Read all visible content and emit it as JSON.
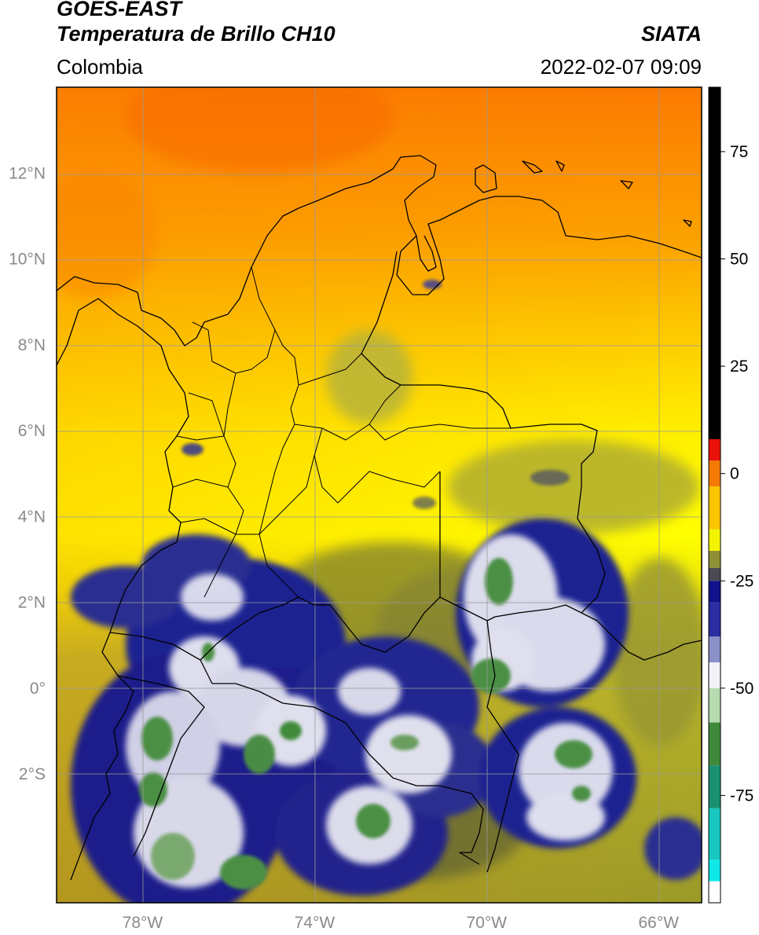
{
  "header": {
    "satellite": "GOES-EAST",
    "product": "Temperatura de Brillo CH10",
    "organization": "SIATA",
    "region": "Colombia",
    "datetime": "2022-02-07 09:09"
  },
  "map": {
    "lon_range": [
      -80,
      -65
    ],
    "lat_range": [
      -5,
      14
    ],
    "lat_ticks": [
      {
        "value": 12,
        "label": "12°N"
      },
      {
        "value": 10,
        "label": "10°N"
      },
      {
        "value": 8,
        "label": "8°N"
      },
      {
        "value": 6,
        "label": "6°N"
      },
      {
        "value": 4,
        "label": "4°N"
      },
      {
        "value": 2,
        "label": "2°N"
      },
      {
        "value": 0,
        "label": "0°"
      },
      {
        "value": -2,
        "label": "2°S"
      }
    ],
    "lon_ticks": [
      {
        "value": -78,
        "label": "78°W"
      },
      {
        "value": -74,
        "label": "74°W"
      },
      {
        "value": -70,
        "label": "70°W"
      },
      {
        "value": -66,
        "label": "66°W"
      }
    ]
  },
  "colorbar": {
    "range": [
      -100,
      90
    ],
    "ticks": [
      {
        "value": 75,
        "label": "75"
      },
      {
        "value": 50,
        "label": "50"
      },
      {
        "value": 25,
        "label": "25"
      },
      {
        "value": 0,
        "label": "0"
      },
      {
        "value": -25,
        "label": "-25"
      },
      {
        "value": -50,
        "label": "-50"
      },
      {
        "value": -75,
        "label": "-75"
      }
    ],
    "segments": [
      {
        "from": 8,
        "to": 90,
        "color": "#000000"
      },
      {
        "from": 3,
        "to": 8,
        "color": "#e8120a"
      },
      {
        "from": -3,
        "to": 3,
        "color": "#f27a05"
      },
      {
        "from": -13,
        "to": -3,
        "color": "#fbc400"
      },
      {
        "from": -18,
        "to": -13,
        "color": "#f4f400"
      },
      {
        "from": -22,
        "to": -18,
        "color": "#8f8f35"
      },
      {
        "from": -25,
        "to": -22,
        "color": "#4a4a55"
      },
      {
        "from": -30,
        "to": -25,
        "color": "#12128a"
      },
      {
        "from": -38,
        "to": -30,
        "color": "#2a2ea0"
      },
      {
        "from": -44,
        "to": -38,
        "color": "#8a90c8"
      },
      {
        "from": -50,
        "to": -44,
        "color": "#f2f2f8"
      },
      {
        "from": -58,
        "to": -50,
        "color": "#b8dab0"
      },
      {
        "from": -68,
        "to": -58,
        "color": "#3f8a3a"
      },
      {
        "from": -78,
        "to": -68,
        "color": "#1a9070"
      },
      {
        "from": -90,
        "to": -78,
        "color": "#18c8c0"
      },
      {
        "from": -95,
        "to": -90,
        "color": "#10e8e8"
      },
      {
        "from": -100,
        "to": -95,
        "color": "#ffffff"
      }
    ]
  },
  "colors": {
    "warm_sea": "#fc8c00",
    "mid_land": "#ffff00",
    "olive": "#9a9c22",
    "cold_cloud": "#1a1a80",
    "very_cold": "#ffffff",
    "coldest_core": "#4c8f45",
    "borders": "#000000",
    "grid": "#9a9a9a"
  }
}
